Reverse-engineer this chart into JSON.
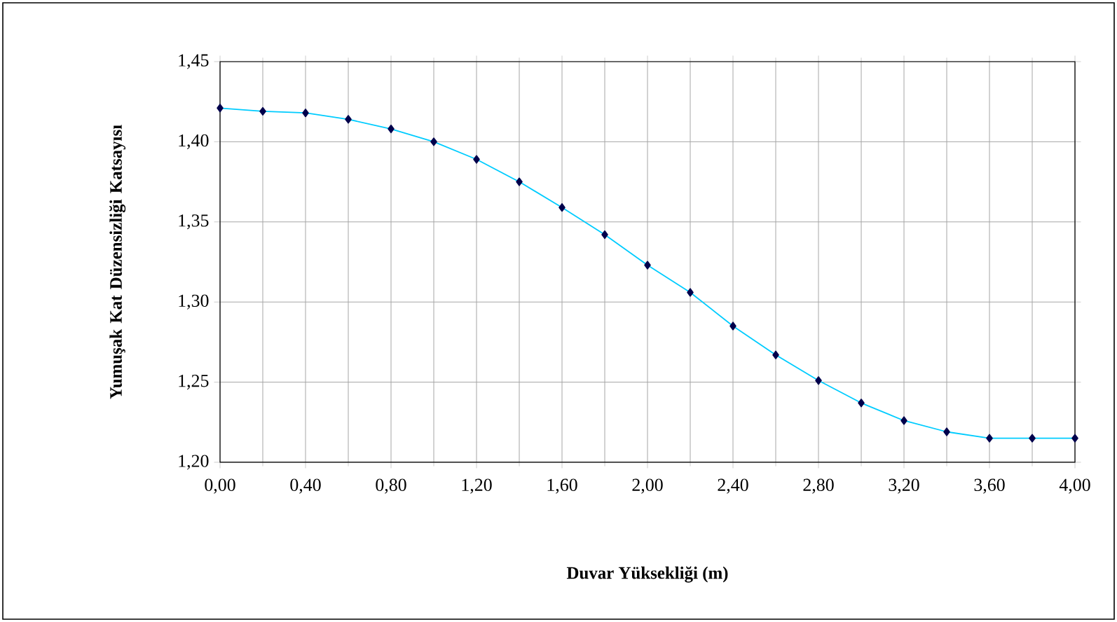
{
  "chart_data": {
    "type": "line",
    "xlabel": "Duvar Yüksekliği (m)",
    "ylabel": "Yumuşak Kat Düzensizliği Katsayısı",
    "x": [
      0,
      0.2,
      0.4,
      0.6,
      0.8,
      1.0,
      1.2,
      1.4,
      1.6,
      1.8,
      2.0,
      2.2,
      2.4,
      2.6,
      2.8,
      3.0,
      3.2,
      3.4,
      3.6,
      3.8,
      4.0
    ],
    "series": [
      {
        "color": "#00ccff",
        "values": [
          1.421,
          1.419,
          1.418,
          1.414,
          1.408,
          1.4,
          1.389,
          1.375,
          1.359,
          1.342,
          1.323,
          1.306,
          1.285,
          1.267,
          1.251,
          1.237,
          1.226,
          1.219,
          1.215,
          1.215,
          1.215
        ]
      }
    ],
    "marker": "diamond",
    "grid": true,
    "xlim": [
      0,
      4
    ],
    "ylim": [
      1.2,
      1.45
    ],
    "xticks": [
      {
        "value": 0,
        "label": "0,00"
      },
      {
        "value": 0.4,
        "label": "0,40"
      },
      {
        "value": 0.8,
        "label": "0,80"
      },
      {
        "value": 1.2,
        "label": "1,20"
      },
      {
        "value": 1.6,
        "label": "1,60"
      },
      {
        "value": 2.0,
        "label": "2,00"
      },
      {
        "value": 2.4,
        "label": "2,40"
      },
      {
        "value": 2.8,
        "label": "2,80"
      },
      {
        "value": 3.2,
        "label": "3,20"
      },
      {
        "value": 3.6,
        "label": "3,60"
      },
      {
        "value": 4.0,
        "label": "4,00"
      }
    ],
    "yticks": [
      {
        "value": 1.2,
        "label": "1,20"
      },
      {
        "value": 1.25,
        "label": "1,25"
      },
      {
        "value": 1.3,
        "label": "1,30"
      },
      {
        "value": 1.35,
        "label": "1,35"
      },
      {
        "value": 1.4,
        "label": "1,40"
      },
      {
        "value": 1.45,
        "label": "1,45"
      }
    ]
  }
}
